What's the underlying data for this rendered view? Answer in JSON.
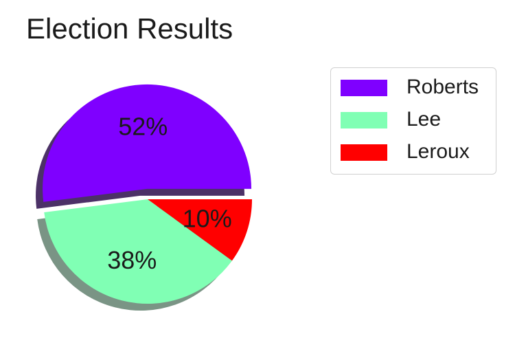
{
  "chart_data": {
    "type": "pie",
    "title": "Election Results",
    "categories": [
      "Roberts",
      "Lee",
      "Leroux"
    ],
    "values": [
      52,
      38,
      10
    ],
    "labels": [
      "52%",
      "38%",
      "10%"
    ],
    "colors": [
      "#7f00ff",
      "#80ffb4",
      "#ff0000"
    ],
    "explode": [
      1,
      0,
      0
    ],
    "shadow": true,
    "legend_position": "right"
  }
}
